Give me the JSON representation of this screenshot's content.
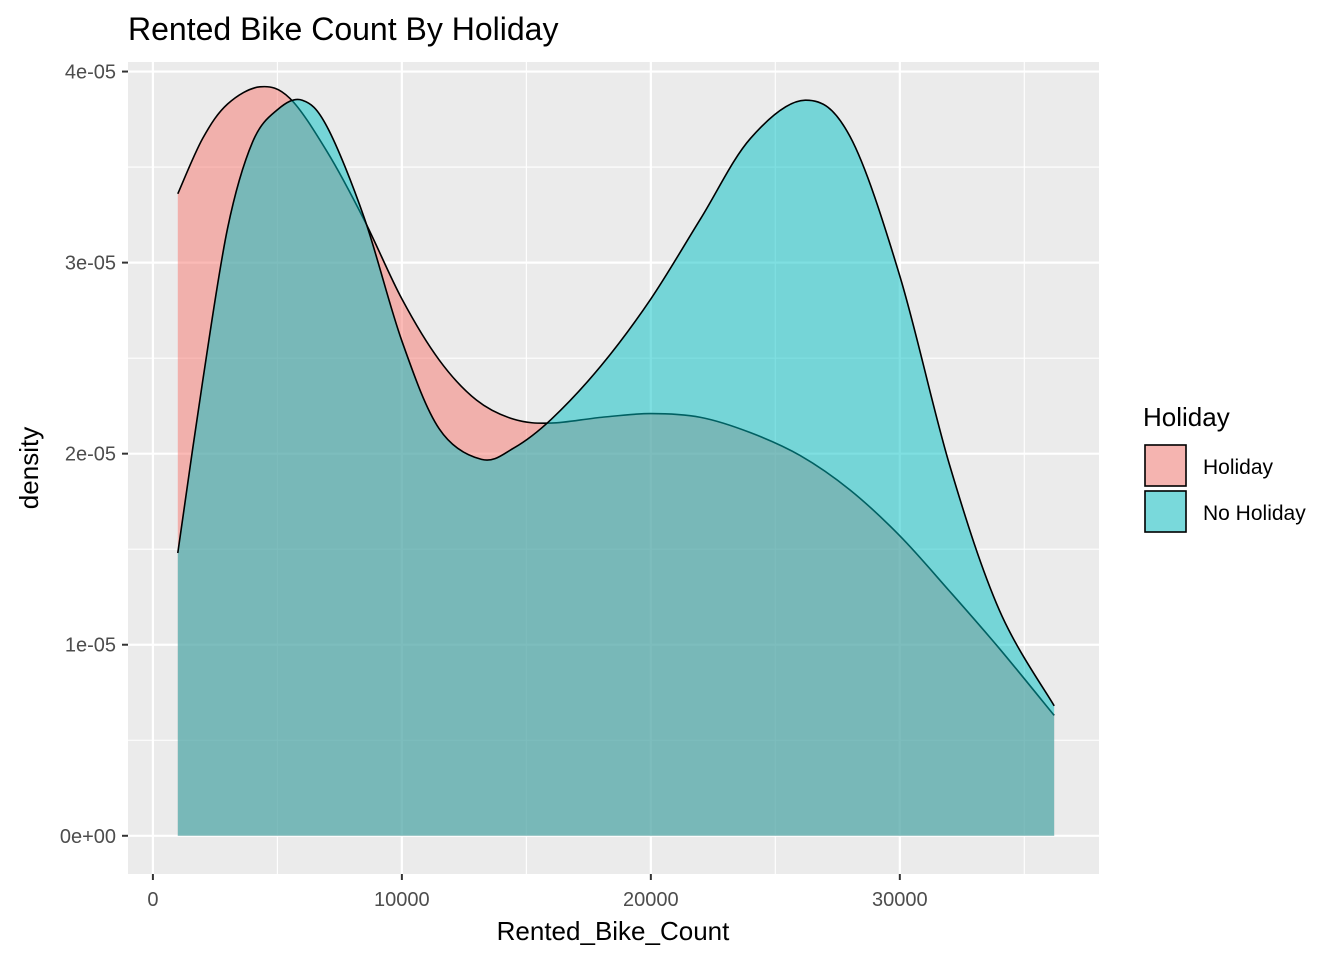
{
  "chart_data": {
    "type": "area",
    "title": "Rented Bike Count By Holiday",
    "xlabel": "Rented_Bike_Count",
    "ylabel": "density",
    "xlim": [
      -1000,
      38000
    ],
    "ylim": [
      -2e-06,
      4.05e-05
    ],
    "x_ticks": [
      0,
      10000,
      20000,
      30000
    ],
    "x_tick_labels": [
      "0",
      "10000",
      "20000",
      "30000"
    ],
    "y_ticks": [
      0,
      1e-05,
      2e-05,
      3e-05,
      4e-05
    ],
    "y_tick_labels": [
      "0e+00",
      "1e-05",
      "2e-05",
      "3e-05",
      "4e-05"
    ],
    "grid": true,
    "legend": {
      "title": "Holiday",
      "position": "right"
    },
    "series": [
      {
        "name": "Holiday",
        "color": "#F8766D",
        "x": [
          1000,
          2000,
          3000,
          4300,
          5500,
          7000,
          8500,
          10000,
          11500,
          13000,
          14500,
          16000,
          18000,
          20000,
          22000,
          24000,
          26000,
          28000,
          30000,
          32000,
          34000,
          36200
        ],
        "y": [
          3.36e-05,
          3.65e-05,
          3.83e-05,
          3.92e-05,
          3.86e-05,
          3.58e-05,
          3.22e-05,
          2.81e-05,
          2.49e-05,
          2.28e-05,
          2.18e-05,
          2.16e-05,
          2.19e-05,
          2.21e-05,
          2.19e-05,
          2.11e-05,
          1.99e-05,
          1.81e-05,
          1.57e-05,
          1.28e-05,
          9.8e-06,
          6.3e-06
        ]
      },
      {
        "name": "No Holiday",
        "color": "#00BFC4",
        "x": [
          1000,
          2000,
          3000,
          4000,
          5000,
          6000,
          7000,
          8500,
          10000,
          11500,
          13200,
          14500,
          16000,
          18000,
          20000,
          22000,
          24000,
          26200,
          28000,
          30000,
          32000,
          34000,
          36200
        ],
        "y": [
          1.48e-05,
          2.38e-05,
          3.18e-05,
          3.63e-05,
          3.8e-05,
          3.85e-05,
          3.71e-05,
          3.23e-05,
          2.59e-05,
          2.13e-05,
          1.97e-05,
          2.03e-05,
          2.18e-05,
          2.46e-05,
          2.81e-05,
          3.23e-05,
          3.65e-05,
          3.85e-05,
          3.66e-05,
          2.93e-05,
          1.94e-05,
          1.18e-05,
          6.8e-06
        ]
      }
    ]
  }
}
